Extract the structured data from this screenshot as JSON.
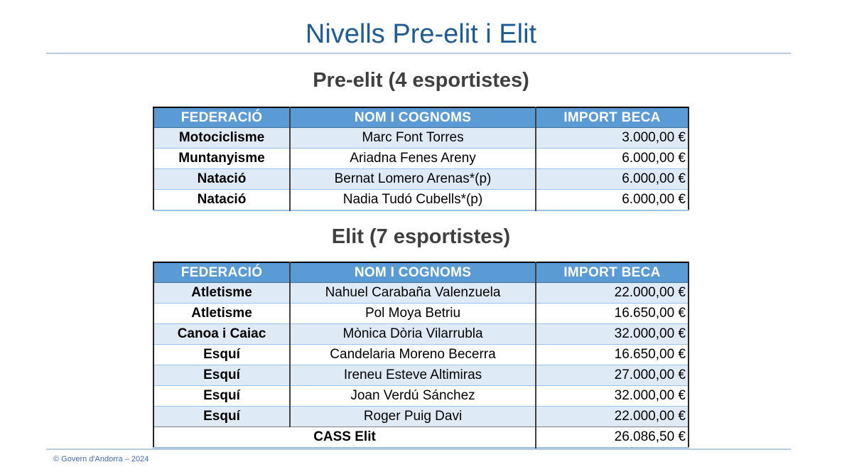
{
  "page": {
    "title": "Nivells Pre-elit i Elit",
    "footer": "© Govern d'Andorra – 2024"
  },
  "colors": {
    "title_blue": "#1F5B94",
    "heading_gray": "#3F3F3F",
    "table_header_bg": "#5B9BD5",
    "row_stripe_bg": "#DEEBF7",
    "divider_blue": "#B9CDE2",
    "footer_blue": "#3F6AB5"
  },
  "tables": [
    {
      "heading": "Pre-elit (4 esportistes)",
      "columns": [
        "FEDERACIÓ",
        "NOM I COGNOMS",
        "IMPORT BECA"
      ],
      "rows": [
        {
          "federation": "Motociclisme",
          "name": "Marc Font Torres",
          "amount": "3.000,00 €"
        },
        {
          "federation": "Muntanyisme",
          "name": "Ariadna Fenes Areny",
          "amount": "6.000,00 €"
        },
        {
          "federation": "Natació",
          "name": "Bernat Lomero Arenas*(p)",
          "amount": "6.000,00 €"
        },
        {
          "federation": "Natació",
          "name": "Nadia Tudó Cubells*(p)",
          "amount": "6.000,00 €"
        }
      ]
    },
    {
      "heading": "Elit (7 esportistes)",
      "columns": [
        "FEDERACIÓ",
        "NOM I COGNOMS",
        "IMPORT BECA"
      ],
      "rows": [
        {
          "federation": "Atletisme",
          "name": "Nahuel Carabaña Valenzuela",
          "amount": "22.000,00 €"
        },
        {
          "federation": "Atletisme",
          "name": "Pol Moya Betriu",
          "amount": "16.650,00 €"
        },
        {
          "federation": "Canoa i Caiac",
          "name": "Mònica Dòria Vilarrubla",
          "amount": "32.000,00 €"
        },
        {
          "federation": "Esquí",
          "name": "Candelaria Moreno Becerra",
          "amount": "16.650,00 €"
        },
        {
          "federation": "Esquí",
          "name": "Ireneu Esteve Altimiras",
          "amount": "27.000,00 €"
        },
        {
          "federation": "Esquí",
          "name": "Joan Verdú Sánchez",
          "amount": "32.000,00 €"
        },
        {
          "federation": "Esquí",
          "name": "Roger Puig Davi",
          "amount": "22.000,00 €"
        }
      ],
      "summary": {
        "label": "CASS Elit",
        "amount": "26.086,50 €"
      }
    }
  ]
}
